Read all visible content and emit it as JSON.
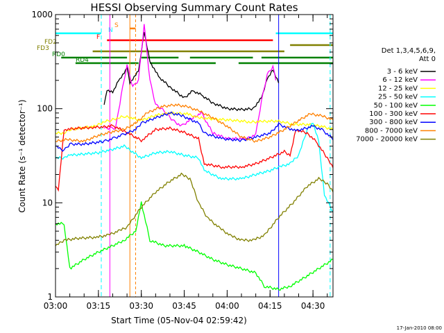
{
  "chart_data": {
    "type": "line",
    "title": "HESSI Observing Summary Count Rates",
    "xlabel": "Start Time (05-Nov-04 02:59:42)",
    "ylabel": "Count Rate (s⁻¹ detector⁻¹)",
    "yscale": "log",
    "ylim": [
      1,
      1000
    ],
    "xlim": [
      "03:00",
      "04:37"
    ],
    "x_ticks": [
      "03:00",
      "03:15",
      "03:30",
      "03:45",
      "04:00",
      "04:15",
      "04:30"
    ],
    "y_ticks": [
      "1",
      "10",
      "100",
      "1000"
    ],
    "date_stamp": "17-Jan-2010 08:00",
    "legend": {
      "header": [
        "Det 1,3,4,5,6,9,",
        "Att 0"
      ],
      "placement": "right"
    },
    "series": [
      {
        "name": "3 - 6 keV",
        "color": "#000000",
        "points": [
          [
            "03:17",
            110
          ],
          [
            "03:18",
            160
          ],
          [
            "03:20",
            150
          ],
          [
            "03:22",
            200
          ],
          [
            "03:24",
            240
          ],
          [
            "03:25",
            280
          ],
          [
            "03:26",
            190
          ],
          [
            "03:29",
            250
          ],
          [
            "03:31",
            660
          ],
          [
            "03:33",
            320
          ],
          [
            "03:36",
            220
          ],
          [
            "03:40",
            170
          ],
          [
            "03:45",
            130
          ],
          [
            "03:48",
            155
          ],
          [
            "03:51",
            140
          ],
          [
            "03:55",
            115
          ],
          [
            "04:00",
            100
          ],
          [
            "04:05",
            98
          ],
          [
            "04:09",
            100
          ],
          [
            "04:12",
            130
          ],
          [
            "04:14",
            210
          ],
          [
            "04:16",
            260
          ],
          [
            "04:18",
            190
          ]
        ]
      },
      {
        "name": "6 - 12 keV",
        "color": "#ff00ff",
        "points": [
          [
            "03:17",
            62
          ],
          [
            "03:19",
            62
          ],
          [
            "03:21",
            62
          ],
          [
            "03:23",
            140
          ],
          [
            "03:25",
            290
          ],
          [
            "03:27",
            170
          ],
          [
            "03:29",
            200
          ],
          [
            "03:31",
            780
          ],
          [
            "03:33",
            200
          ],
          [
            "03:35",
            110
          ],
          [
            "03:37",
            100
          ],
          [
            "03:39",
            88
          ],
          [
            "03:41",
            75
          ],
          [
            "03:44",
            65
          ],
          [
            "03:48",
            80
          ],
          [
            "03:51",
            90
          ],
          [
            "03:55",
            55
          ],
          [
            "04:00",
            48
          ],
          [
            "04:07",
            48
          ],
          [
            "04:10",
            53
          ],
          [
            "04:12",
            120
          ],
          [
            "04:14",
            230
          ],
          [
            "04:16",
            280
          ],
          [
            "04:17",
            200
          ]
        ]
      },
      {
        "name": "12 - 25 keV",
        "color": "#ffff00",
        "points": [
          [
            "03:00",
            55
          ],
          [
            "03:03",
            55
          ],
          [
            "03:05",
            60
          ],
          [
            "03:10",
            63
          ],
          [
            "03:14",
            65
          ],
          [
            "03:17",
            73
          ],
          [
            "03:19",
            75
          ],
          [
            "03:22",
            80
          ],
          [
            "03:24",
            83
          ],
          [
            "03:30",
            75
          ],
          [
            "03:35",
            85
          ],
          [
            "03:40",
            90
          ],
          [
            "03:46",
            88
          ],
          [
            "03:50",
            80
          ],
          [
            "03:55",
            78
          ],
          [
            "04:00",
            76
          ],
          [
            "04:05",
            74
          ],
          [
            "04:08",
            72
          ],
          [
            "04:12",
            73
          ],
          [
            "04:17",
            74
          ],
          [
            "04:20",
            72
          ],
          [
            "04:23",
            68
          ],
          [
            "04:28",
            68
          ],
          [
            "04:33",
            65
          ],
          [
            "04:37",
            60
          ]
        ]
      },
      {
        "name": "25 - 50 keV",
        "color": "#00ffff",
        "points": [
          [
            "03:00",
            30
          ],
          [
            "03:03",
            30
          ],
          [
            "03:05",
            32
          ],
          [
            "03:10",
            33
          ],
          [
            "03:15",
            34
          ],
          [
            "03:20",
            37
          ],
          [
            "03:24",
            40
          ],
          [
            "03:30",
            30
          ],
          [
            "03:35",
            34
          ],
          [
            "03:40",
            35
          ],
          [
            "03:45",
            32
          ],
          [
            "03:50",
            30
          ],
          [
            "03:52",
            22
          ],
          [
            "03:58",
            18
          ],
          [
            "04:05",
            18
          ],
          [
            "04:10",
            20
          ],
          [
            "04:15",
            22
          ],
          [
            "04:18",
            24
          ],
          [
            "04:22",
            26
          ],
          [
            "04:25",
            32
          ],
          [
            "04:28",
            60
          ],
          [
            "04:30",
            70
          ],
          [
            "04:32",
            45
          ],
          [
            "04:34",
            12
          ],
          [
            "04:37",
            8
          ]
        ]
      },
      {
        "name": "50 - 100 keV",
        "color": "#00ff00",
        "points": [
          [
            "03:00",
            6
          ],
          [
            "03:03",
            6
          ],
          [
            "03:05",
            2
          ],
          [
            "03:10",
            2.5
          ],
          [
            "03:15",
            3
          ],
          [
            "03:20",
            3.5
          ],
          [
            "03:24",
            4
          ],
          [
            "03:28",
            5
          ],
          [
            "03:30",
            10
          ],
          [
            "03:33",
            4
          ],
          [
            "03:38",
            3.5
          ],
          [
            "03:45",
            3.5
          ],
          [
            "03:50",
            3
          ],
          [
            "03:55",
            2.5
          ],
          [
            "04:00",
            2.2
          ],
          [
            "04:05",
            2
          ],
          [
            "04:10",
            1.8
          ],
          [
            "04:13",
            1.3
          ],
          [
            "04:18",
            1.2
          ],
          [
            "04:22",
            1.3
          ],
          [
            "04:27",
            1.6
          ],
          [
            "04:32",
            2
          ],
          [
            "04:37",
            2.5
          ]
        ]
      },
      {
        "name": "100 - 300 keV",
        "color": "#ff0000",
        "points": [
          [
            "03:00",
            15
          ],
          [
            "03:01",
            14
          ],
          [
            "03:03",
            60
          ],
          [
            "03:08",
            62
          ],
          [
            "03:12",
            63
          ],
          [
            "03:17",
            64
          ],
          [
            "03:20",
            66
          ],
          [
            "03:24",
            58
          ],
          [
            "03:30",
            46
          ],
          [
            "03:35",
            60
          ],
          [
            "03:40",
            62
          ],
          [
            "03:45",
            56
          ],
          [
            "03:50",
            48
          ],
          [
            "03:52",
            26
          ],
          [
            "03:58",
            24
          ],
          [
            "04:05",
            24
          ],
          [
            "04:10",
            26
          ],
          [
            "04:15",
            30
          ],
          [
            "04:20",
            35
          ],
          [
            "04:22",
            32
          ],
          [
            "04:24",
            60
          ],
          [
            "04:28",
            55
          ],
          [
            "04:31",
            45
          ],
          [
            "04:35",
            30
          ],
          [
            "04:37",
            24
          ]
        ]
      },
      {
        "name": "300 - 800 keV",
        "color": "#0000ff",
        "points": [
          [
            "03:00",
            40
          ],
          [
            "03:01",
            38
          ],
          [
            "03:03",
            36
          ],
          [
            "03:05",
            42
          ],
          [
            "03:10",
            42
          ],
          [
            "03:17",
            45
          ],
          [
            "03:20",
            48
          ],
          [
            "03:23",
            52
          ],
          [
            "03:28",
            60
          ],
          [
            "03:30",
            70
          ],
          [
            "03:35",
            80
          ],
          [
            "03:40",
            90
          ],
          [
            "03:44",
            85
          ],
          [
            "03:50",
            70
          ],
          [
            "03:52",
            55
          ],
          [
            "03:58",
            48
          ],
          [
            "04:05",
            46
          ],
          [
            "04:10",
            50
          ],
          [
            "04:15",
            55
          ],
          [
            "04:18",
            68
          ],
          [
            "04:24",
            58
          ],
          [
            "04:30",
            65
          ],
          [
            "04:33",
            60
          ],
          [
            "04:37",
            48
          ]
        ]
      },
      {
        "name": "800 - 7000 keV",
        "color": "#ff8000",
        "points": [
          [
            "03:00",
            45
          ],
          [
            "03:04",
            47
          ],
          [
            "03:10",
            45
          ],
          [
            "03:15",
            52
          ],
          [
            "03:20",
            57
          ],
          [
            "03:24",
            60
          ],
          [
            "03:28",
            70
          ],
          [
            "03:32",
            90
          ],
          [
            "03:37",
            105
          ],
          [
            "03:42",
            110
          ],
          [
            "03:46",
            105
          ],
          [
            "03:50",
            95
          ],
          [
            "03:55",
            80
          ],
          [
            "04:00",
            65
          ],
          [
            "04:05",
            50
          ],
          [
            "04:10",
            45
          ],
          [
            "04:15",
            50
          ],
          [
            "04:20",
            60
          ],
          [
            "04:25",
            75
          ],
          [
            "04:29",
            88
          ],
          [
            "04:33",
            84
          ],
          [
            "04:37",
            76
          ]
        ]
      },
      {
        "name": "7000 - 20000 keV",
        "color": "#808000",
        "points": [
          [
            "03:00",
            3.5
          ],
          [
            "03:03",
            4
          ],
          [
            "03:08",
            4.2
          ],
          [
            "03:14",
            4.3
          ],
          [
            "03:18",
            4.5
          ],
          [
            "03:22",
            5
          ],
          [
            "03:25",
            5.5
          ],
          [
            "03:30",
            9
          ],
          [
            "03:35",
            13
          ],
          [
            "03:40",
            17
          ],
          [
            "03:44",
            20
          ],
          [
            "03:47",
            18
          ],
          [
            "03:50",
            10
          ],
          [
            "03:53",
            7
          ],
          [
            "03:57",
            5.5
          ],
          [
            "04:01",
            4.5
          ],
          [
            "04:05",
            4
          ],
          [
            "04:09",
            4
          ],
          [
            "04:13",
            4.5
          ],
          [
            "04:18",
            7
          ],
          [
            "04:23",
            10
          ],
          [
            "04:28",
            15
          ],
          [
            "04:32",
            18
          ],
          [
            "04:35",
            16
          ],
          [
            "04:37",
            13
          ]
        ]
      }
    ],
    "flags": [
      {
        "label": "N",
        "color": "#00ffff",
        "segments": [
          [
            "02:59",
            "03:16"
          ],
          [
            "04:17",
            "04:37"
          ]
        ]
      },
      {
        "label": "S",
        "color": "#ff8000",
        "segments": [
          [
            "03:26",
            "03:28"
          ]
        ]
      },
      {
        "label": "F",
        "color": "#ff0000",
        "segments": [
          [
            "03:18",
            "04:16"
          ]
        ]
      },
      {
        "label": "FD2",
        "color": "#808000",
        "segments": [
          [
            "04:22",
            "04:37"
          ]
        ]
      },
      {
        "label": "FD3",
        "color": "#808000",
        "segments": [
          [
            "03:13",
            "04:20"
          ]
        ]
      },
      {
        "label": "RD0",
        "color": "#008000",
        "segments": [
          [
            "03:02",
            "03:25"
          ],
          [
            "03:30",
            "03:43"
          ],
          [
            "03:47",
            "04:09"
          ],
          [
            "04:12",
            "04:37"
          ]
        ]
      },
      {
        "label": "RD4",
        "color": "#008000",
        "segments": [
          [
            "03:07",
            "03:29"
          ],
          [
            "03:33",
            "03:56"
          ],
          [
            "04:04",
            "04:37"
          ]
        ]
      }
    ]
  }
}
